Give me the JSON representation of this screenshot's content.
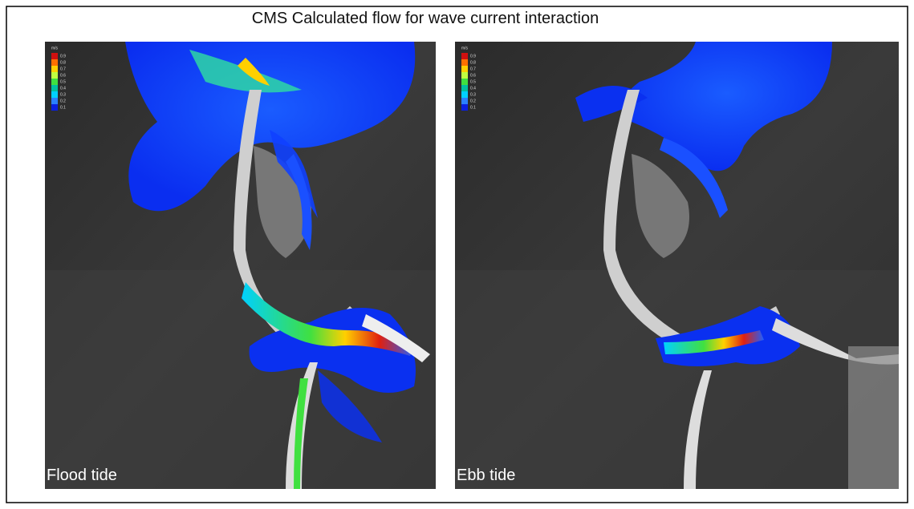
{
  "title": "CMS Calculated flow  for wave current interaction",
  "panels": [
    {
      "label": "Flood tide"
    },
    {
      "label": "Ebb tide"
    }
  ],
  "legend": {
    "unit": "m/s",
    "levels": [
      0.9,
      0.8,
      0.7,
      0.6,
      0.5,
      0.4,
      0.3,
      0.2,
      0.1
    ]
  }
}
